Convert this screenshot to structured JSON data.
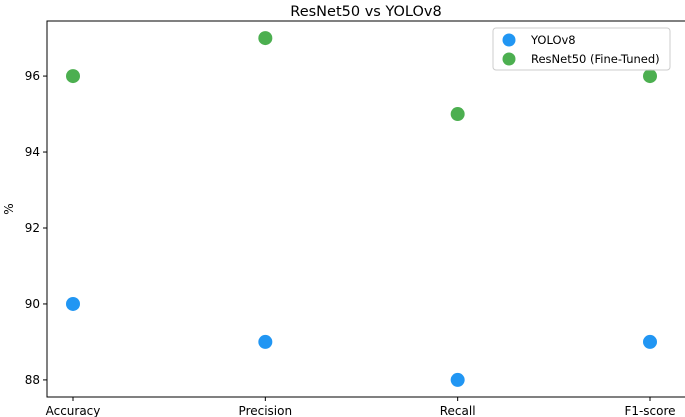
{
  "chart_data": {
    "type": "scatter",
    "title": "ResNet50 vs YOLOv8",
    "xlabel": "",
    "ylabel": "%",
    "categories": [
      "Accuracy",
      "Precision",
      "Recall",
      "F1-score"
    ],
    "series": [
      {
        "name": "YOLOv8",
        "values": [
          90,
          89,
          88,
          89
        ],
        "color": "#2196f3"
      },
      {
        "name": "ResNet50 (Fine-Tuned)",
        "values": [
          96,
          97,
          95,
          96
        ],
        "color": "#4caf50"
      }
    ],
    "yticks": [
      88,
      90,
      92,
      94,
      96
    ],
    "ylim": [
      87.55,
      97.45
    ],
    "grid": false,
    "legend_position": "top-right"
  }
}
